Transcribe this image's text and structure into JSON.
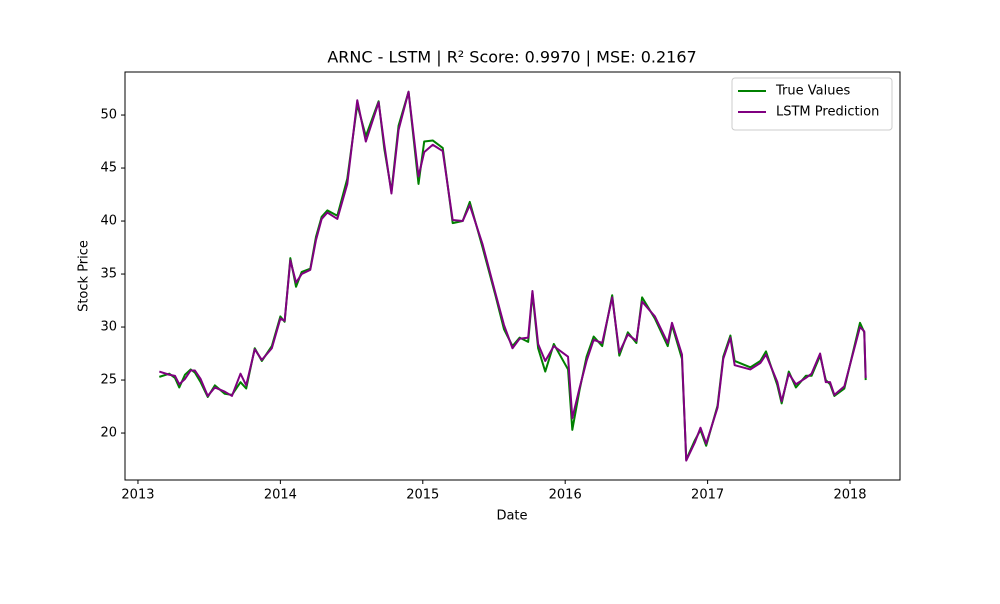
{
  "chart_data": {
    "type": "line",
    "title": "ARNC - LSTM | R² Score: 0.9970 | MSE: 0.2167",
    "xlabel": "Date",
    "ylabel": "Stock Price",
    "x": [
      2013.15,
      2013.22,
      2013.26,
      2013.29,
      2013.33,
      2013.37,
      2013.4,
      2013.44,
      2013.49,
      2013.54,
      2013.61,
      2013.66,
      2013.72,
      2013.76,
      2013.82,
      2013.87,
      2013.94,
      2014.0,
      2014.03,
      2014.07,
      2014.11,
      2014.15,
      2014.21,
      2014.25,
      2014.29,
      2014.33,
      2014.4,
      2014.47,
      2014.54,
      2014.6,
      2014.69,
      2014.73,
      2014.78,
      2014.83,
      2014.9,
      2014.97,
      2015.01,
      2015.07,
      2015.14,
      2015.21,
      2015.28,
      2015.33,
      2015.42,
      2015.51,
      2015.57,
      2015.63,
      2015.68,
      2015.74,
      2015.77,
      2015.81,
      2015.86,
      2015.92,
      2016.02,
      2016.05,
      2016.1,
      2016.15,
      2016.2,
      2016.26,
      2016.33,
      2016.38,
      2016.44,
      2016.5,
      2016.54,
      2016.63,
      2016.72,
      2016.75,
      2016.82,
      2016.85,
      2016.91,
      2016.95,
      2016.99,
      2017.07,
      2017.11,
      2017.16,
      2017.19,
      2017.3,
      2017.37,
      2017.41,
      2017.49,
      2017.52,
      2017.57,
      2017.62,
      2017.69,
      2017.73,
      2017.79,
      2017.83,
      2017.86,
      2017.89,
      2017.96,
      2018.07,
      2018.1,
      2018.11
    ],
    "series": [
      {
        "name": "True Values",
        "color": "#008000",
        "values": [
          25.3,
          25.6,
          25.2,
          24.3,
          25.5,
          26.0,
          25.7,
          24.8,
          23.4,
          24.5,
          23.7,
          23.6,
          24.8,
          24.2,
          28.0,
          26.8,
          28.2,
          31.0,
          30.5,
          36.5,
          33.8,
          35.2,
          35.5,
          38.5,
          40.4,
          41.0,
          40.5,
          44.0,
          51.0,
          48.0,
          51.3,
          46.8,
          42.8,
          49.0,
          52.2,
          43.5,
          47.5,
          47.6,
          46.9,
          39.8,
          40.0,
          41.8,
          37.5,
          33.0,
          29.8,
          28.2,
          29.0,
          28.6,
          33.2,
          28.0,
          25.8,
          28.4,
          26.0,
          20.3,
          24.0,
          27.2,
          29.1,
          28.2,
          33.0,
          27.3,
          29.5,
          28.5,
          32.8,
          30.8,
          28.2,
          30.2,
          27.0,
          17.5,
          19.3,
          20.3,
          18.8,
          22.6,
          27.2,
          29.2,
          26.8,
          26.2,
          26.8,
          27.7,
          24.5,
          22.8,
          25.8,
          24.3,
          25.4,
          25.4,
          27.3,
          25.0,
          24.6,
          23.5,
          24.2,
          30.4,
          29.5,
          25.0
        ]
      },
      {
        "name": "LSTM Prediction",
        "color": "#800080",
        "values": [
          25.8,
          25.5,
          25.4,
          24.6,
          25.1,
          25.9,
          25.9,
          25.1,
          23.5,
          24.3,
          23.9,
          23.5,
          25.6,
          24.5,
          27.9,
          26.9,
          28.0,
          30.8,
          30.6,
          36.3,
          34.2,
          35.0,
          35.4,
          38.2,
          40.2,
          40.8,
          40.2,
          43.5,
          51.4,
          47.5,
          51.2,
          47.2,
          42.6,
          48.6,
          52.2,
          44.2,
          46.5,
          47.2,
          46.6,
          40.1,
          40.0,
          41.5,
          37.8,
          33.2,
          30.2,
          28.0,
          28.9,
          29.0,
          33.4,
          28.4,
          26.8,
          28.2,
          27.2,
          21.4,
          24.2,
          26.8,
          28.8,
          28.5,
          32.8,
          27.6,
          29.3,
          28.7,
          32.4,
          31.0,
          28.5,
          30.4,
          27.4,
          17.4,
          19.1,
          20.5,
          19.0,
          22.4,
          27.0,
          29.0,
          26.4,
          26.0,
          26.6,
          27.4,
          24.8,
          23.0,
          25.6,
          24.6,
          25.2,
          25.6,
          27.5,
          24.8,
          24.8,
          23.6,
          24.4,
          30.0,
          29.6,
          25.2
        ]
      }
    ],
    "xlim": [
      2012.909,
      2018.351
    ],
    "xticks": [
      2013,
      2014,
      2015,
      2016,
      2017,
      2018
    ],
    "ylim": [
      15.57,
      54.06
    ],
    "yticks": [
      20,
      25,
      30,
      35,
      40,
      45,
      50
    ],
    "grid": false,
    "legend": "upper right"
  }
}
